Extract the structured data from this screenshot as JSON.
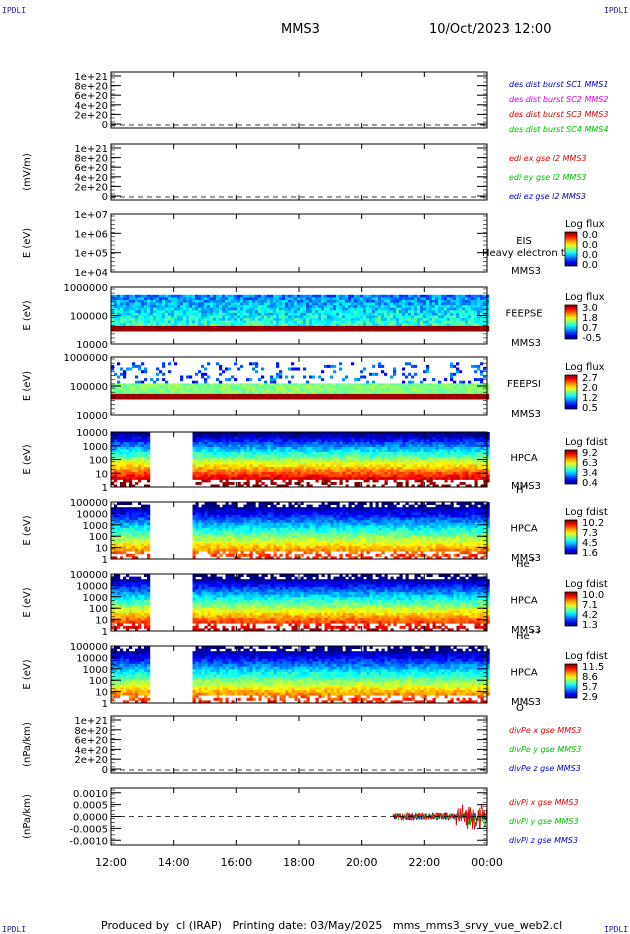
{
  "corner_label": "IPDLI",
  "header": {
    "spacecraft": "MMS3",
    "datetime": "10/Oct/2023 12:00"
  },
  "footer": {
    "produced": "Produced by  cl (IRAP)",
    "printing": "Printing date: 03/May/2025",
    "file": "mms_mms3_srvy_vue_web2.cl"
  },
  "colors": {
    "red": "#e00000",
    "green": "#00c000",
    "blue": "#0000cc",
    "magenta": "#e000e0"
  },
  "chart_data": [
    {
      "type": "line",
      "ylabel": "",
      "yticks": [
        "1e+21",
        "8e+20",
        "6e+20",
        "4e+20",
        "2e+20",
        "0"
      ],
      "ylim": [
        0,
        1e+21
      ],
      "dashed_zero": true,
      "legend": [
        {
          "label": "des dist burst SC1 MMS1",
          "color": "#0000cc"
        },
        {
          "label": "des dist burst SC2 MMS2",
          "color": "#e000e0"
        },
        {
          "label": "des dist burst SC3 MMS3",
          "color": "#e00000"
        },
        {
          "label": "des dist burst SC4 MMS4",
          "color": "#00c000"
        }
      ]
    },
    {
      "type": "line",
      "ylabel": "(mV/m)",
      "yticks": [
        "1e+21",
        "8e+20",
        "6e+20",
        "4e+20",
        "2e+20",
        "0"
      ],
      "ylim": [
        0,
        1e+21
      ],
      "dashed_zero": true,
      "legend": [
        {
          "label": "edi ex gse l2 MMS3",
          "color": "#e00000"
        },
        {
          "label": "edi ey gse l2 MMS3",
          "color": "#00c000"
        },
        {
          "label": "edi ez gse l2 MMS3",
          "color": "#0000cc"
        }
      ]
    },
    {
      "type": "heatmap",
      "ylabel": "E (eV)",
      "yticks": [
        "1e+07",
        "1e+06",
        "1e+05",
        "1e+04"
      ],
      "instrument": [
        "EIS",
        "MMS3"
      ],
      "overlay_text": "Heavy electron to",
      "cbar_title": "Log flux",
      "cbar_ticks": [
        "0.0",
        "0.0",
        "0.0",
        "0.0"
      ],
      "coverage": []
    },
    {
      "type": "heatmap",
      "ylabel": "E (eV)",
      "yticks": [
        "1000000",
        "100000",
        "10000"
      ],
      "instrument": [
        "FEEPSE",
        "MMS3"
      ],
      "cbar_title": "Log flux",
      "cbar_ticks": [
        "3.0",
        "1.8",
        "0.7",
        "-0.5"
      ],
      "coverage": [
        [
          12,
          24
        ]
      ],
      "profile": "feepse"
    },
    {
      "type": "heatmap",
      "ylabel": "E (eV)",
      "yticks": [
        "1000000",
        "100000",
        "10000"
      ],
      "instrument": [
        "FEEPSI",
        "MMS3"
      ],
      "cbar_title": "Log flux",
      "cbar_ticks": [
        "2.7",
        "2.0",
        "1.2",
        "0.5"
      ],
      "coverage": [
        [
          12,
          24
        ]
      ],
      "profile": "feepsi"
    },
    {
      "type": "heatmap",
      "ylabel": "E (eV)",
      "yticks": [
        "10000",
        "1000",
        "100",
        "10",
        "1"
      ],
      "instrument": [
        "HPCA",
        "MMS3"
      ],
      "species": "H",
      "species_sup": "+",
      "cbar_title": "Log fdist",
      "cbar_ticks": [
        "9.2",
        "6.3",
        "3.4",
        "0.4"
      ],
      "coverage": [
        [
          12,
          13.2
        ],
        [
          14.6,
          24
        ]
      ],
      "profile": "hplus"
    },
    {
      "type": "heatmap",
      "ylabel": "E (eV)",
      "yticks": [
        "100000",
        "10000",
        "1000",
        "100",
        "10",
        "1"
      ],
      "instrument": [
        "HPCA",
        "MMS3"
      ],
      "species": "He",
      "species_sup": "+",
      "cbar_title": "Log fdist",
      "cbar_ticks": [
        "10.2",
        "7.3",
        "4.5",
        "1.6"
      ],
      "coverage": [
        [
          12,
          13.2
        ],
        [
          14.6,
          24
        ]
      ],
      "profile": "heplus"
    },
    {
      "type": "heatmap",
      "ylabel": "E (eV)",
      "yticks": [
        "100000",
        "10000",
        "1000",
        "100",
        "10",
        "1"
      ],
      "instrument": [
        "HPCA",
        "MMS3"
      ],
      "species": "He",
      "species_sup": "++",
      "cbar_title": "Log fdist",
      "cbar_ticks": [
        "10.0",
        "7.1",
        "4.2",
        "1.3"
      ],
      "coverage": [
        [
          12,
          13.2
        ],
        [
          14.6,
          24
        ]
      ],
      "profile": "hepp"
    },
    {
      "type": "heatmap",
      "ylabel": "E (eV)",
      "yticks": [
        "100000",
        "10000",
        "1000",
        "100",
        "10",
        "1"
      ],
      "instrument": [
        "HPCA",
        "MMS3"
      ],
      "species": "O",
      "species_sup": "+",
      "cbar_title": "Log fdist",
      "cbar_ticks": [
        "11.5",
        "8.6",
        "5.7",
        "2.9"
      ],
      "coverage": [
        [
          12,
          13.2
        ],
        [
          14.6,
          24
        ]
      ],
      "profile": "oplus"
    },
    {
      "type": "line",
      "ylabel": "(nPa/km)",
      "yticks": [
        "1e+21",
        "8e+20",
        "6e+20",
        "4e+20",
        "2e+20",
        "0"
      ],
      "ylim": [
        0,
        1e+21
      ],
      "dashed_zero": true,
      "legend": [
        {
          "label": "divPe x gse MMS3",
          "color": "#e00000"
        },
        {
          "label": "divPe y gse MMS3",
          "color": "#00c000"
        },
        {
          "label": "divPe z gse MMS3",
          "color": "#0000cc"
        }
      ]
    },
    {
      "type": "line",
      "ylabel": "(nPa/km)",
      "yticks": [
        "0.0010",
        "0.0005",
        "0.0000",
        "-0.0005",
        "-0.0010"
      ],
      "ylim": [
        -0.0012,
        0.0012
      ],
      "dashed_zero": true,
      "data_start_hour": 21.0,
      "legend": [
        {
          "label": "divPi x gse MMS3",
          "color": "#e00000"
        },
        {
          "label": "divPi y gse MMS3",
          "color": "#00c000"
        },
        {
          "label": "divPi z gse MMS3",
          "color": "#0000cc"
        }
      ]
    }
  ],
  "xaxis": {
    "ticks": [
      "12:00",
      "14:00",
      "16:00",
      "18:00",
      "20:00",
      "22:00",
      "00:00"
    ],
    "range_hours": [
      12,
      24
    ]
  }
}
